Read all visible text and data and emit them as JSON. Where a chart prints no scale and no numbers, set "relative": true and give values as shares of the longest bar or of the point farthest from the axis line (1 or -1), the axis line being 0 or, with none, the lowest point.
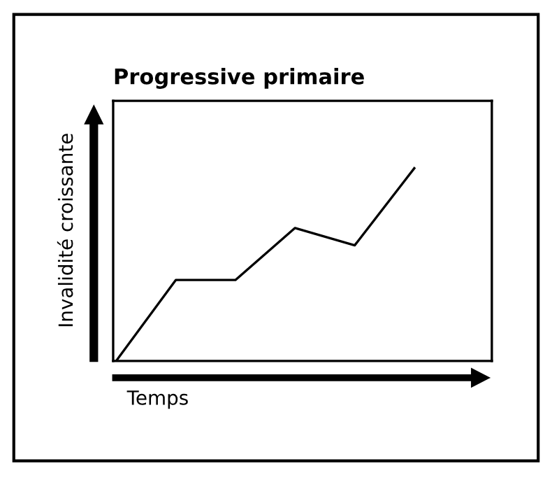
{
  "chart_data": {
    "type": "line",
    "title": "Progressive primaire",
    "xlabel": "Temps",
    "ylabel": "Invalidité croissante",
    "categories": [
      null,
      null,
      null,
      null,
      null,
      null
    ],
    "relative": true,
    "series": [
      {
        "color": "#000000",
        "values": [
          0,
          0.42,
          0.42,
          0.69,
          0.6,
          1
        ]
      }
    ],
    "grid": false,
    "legend": false,
    "marker": "none",
    "line_style": "solid"
  }
}
